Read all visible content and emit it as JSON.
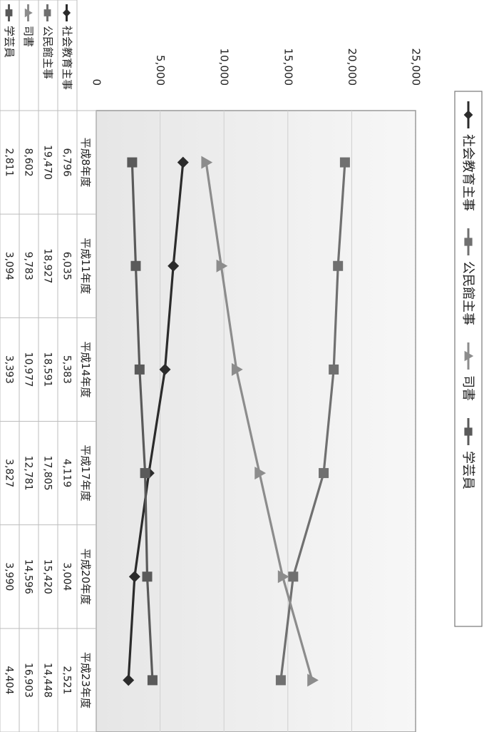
{
  "chart_data": {
    "type": "line",
    "title": "",
    "xlabel": "",
    "ylabel": "",
    "ylim": [
      0,
      25000
    ],
    "yticks": [
      "0",
      "5,000",
      "10,000",
      "15,000",
      "20,000",
      "25,000"
    ],
    "categories": [
      "平成8年度",
      "平成11年度",
      "平成14年度",
      "平成17年度",
      "平成20年度",
      "平成23年度"
    ],
    "grid": true,
    "legend": "top",
    "series": [
      {
        "name": "社会教育主事",
        "values": [
          6796,
          6035,
          5383,
          4119,
          3004,
          2521
        ],
        "labels": [
          "6,796",
          "6,035",
          "5,383",
          "4,119",
          "3,004",
          "2,521"
        ],
        "color": "#2b2b2b",
        "marker": "diamond"
      },
      {
        "name": "公民館主事",
        "values": [
          19470,
          18927,
          18591,
          17805,
          15420,
          14448
        ],
        "labels": [
          "19,470",
          "18,927",
          "18,591",
          "17,805",
          "15,420",
          "14,448"
        ],
        "color": "#707070",
        "marker": "square"
      },
      {
        "name": "司書",
        "values": [
          8602,
          9783,
          10977,
          12781,
          14596,
          16903
        ],
        "labels": [
          "8,602",
          "9,783",
          "10,977",
          "12,781",
          "14,596",
          "16,903"
        ],
        "color": "#8c8c8c",
        "marker": "triangle"
      },
      {
        "name": "学芸員",
        "values": [
          2811,
          3094,
          3393,
          3827,
          3990,
          4404
        ],
        "labels": [
          "2,811",
          "3,094",
          "3,393",
          "3,827",
          "3,990",
          "4,404"
        ],
        "color": "#5a5a5a",
        "marker": "square"
      }
    ]
  }
}
